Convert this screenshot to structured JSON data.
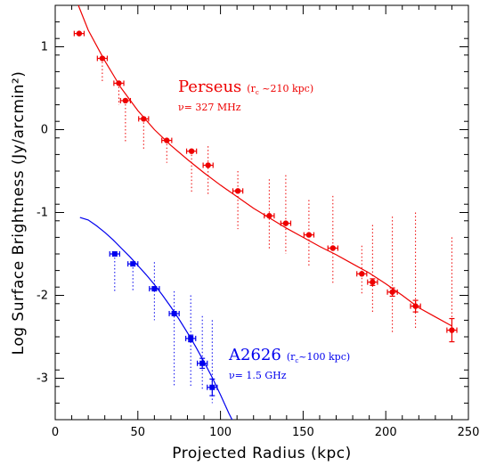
{
  "chart_data": {
    "type": "scatter",
    "title": "",
    "xlabel": "Projected Radius (kpc)",
    "ylabel": "Log Surface Brightness (Jy/arcmin²)",
    "xlim": [
      0,
      250
    ],
    "ylim": [
      -3.5,
      1.5
    ],
    "x_ticks": [
      0,
      50,
      100,
      150,
      200,
      250
    ],
    "x_tick_labels": [
      "0",
      "50",
      "100",
      "150",
      "200",
      "250"
    ],
    "y_ticks": [
      -3,
      -2,
      -1,
      0,
      1
    ],
    "y_tick_labels": [
      "-3",
      "-2",
      "-1",
      "0",
      "1"
    ],
    "grid": false,
    "legend": "none",
    "series": [
      {
        "name": "Perseus",
        "color": "#ee0000",
        "marker": "circle",
        "x": [
          14.5,
          28.5,
          38.5,
          42.5,
          53.5,
          67.5,
          82.5,
          92.5,
          110.5,
          129.5,
          139.5,
          153.5,
          168.0,
          185.5,
          192.0,
          204.0,
          218.0,
          240.0
        ],
        "y": [
          1.16,
          0.86,
          0.56,
          0.35,
          0.13,
          -0.13,
          -0.26,
          -0.43,
          -0.74,
          -1.04,
          -1.13,
          -1.27,
          -1.43,
          -1.74,
          -1.84,
          -1.96,
          -2.13,
          -2.42
        ],
        "xerr": [
          3,
          3,
          3,
          3,
          3,
          3,
          3,
          3,
          3,
          3,
          3,
          3,
          3,
          3,
          3,
          3,
          3,
          3
        ],
        "yerr": [
          0.03,
          0.03,
          0.03,
          0.03,
          0.03,
          0.03,
          0.03,
          0.03,
          0.03,
          0.03,
          0.03,
          0.03,
          0.03,
          0.03,
          0.04,
          0.05,
          0.07,
          0.14
        ],
        "dotted_low": [
          1.16,
          0.56,
          0.3,
          -0.15,
          -0.25,
          -0.4,
          -0.75,
          -0.8,
          -1.2,
          -1.45,
          -1.5,
          -1.65,
          -1.85,
          -2.0,
          -2.2,
          -2.45,
          -2.4,
          -2.42
        ],
        "dotted_high": [
          1.16,
          0.86,
          0.56,
          0.35,
          0.13,
          -0.13,
          -0.26,
          -0.2,
          -0.5,
          -0.6,
          -0.55,
          -0.85,
          -0.8,
          -1.4,
          -1.15,
          -1.05,
          -1.0,
          -1.3
        ],
        "fit_curve": {
          "x": [
            14,
            20,
            30,
            40,
            50,
            60,
            70,
            80,
            90,
            100,
            110,
            120,
            130,
            140,
            150,
            160,
            170,
            180,
            190,
            200,
            210,
            220,
            230,
            240
          ],
          "y": [
            1.5,
            1.2,
            0.83,
            0.5,
            0.23,
            0.0,
            -0.19,
            -0.36,
            -0.52,
            -0.67,
            -0.81,
            -0.95,
            -1.07,
            -1.19,
            -1.3,
            -1.41,
            -1.51,
            -1.62,
            -1.73,
            -1.86,
            -2.0,
            -2.15,
            -2.26,
            -2.37
          ]
        },
        "annotation": {
          "name": "Perseus",
          "core_radius": "(r",
          "core_sub": "c",
          "core_value": " ~210 kpc)",
          "frequency": "ν= 327 MHz"
        }
      },
      {
        "name": "A2626",
        "color": "#0000ee",
        "marker": "square",
        "x": [
          36,
          47,
          60,
          72,
          82,
          89,
          95
        ],
        "y": [
          -1.5,
          -1.62,
          -1.92,
          -2.22,
          -2.52,
          -2.82,
          -3.11
        ],
        "xerr": [
          3,
          3,
          3,
          3,
          3,
          3,
          3
        ],
        "yerr": [
          0.02,
          0.03,
          0.03,
          0.03,
          0.04,
          0.06,
          0.1
        ],
        "dotted_low": [
          -1.95,
          -1.95,
          -2.3,
          -3.1,
          -3.1,
          -3.15,
          -3.3
        ],
        "dotted_high": [
          -1.5,
          -1.62,
          -1.6,
          -1.95,
          -2.0,
          -2.25,
          -2.3
        ],
        "fit_curve": {
          "x": [
            15,
            20,
            25,
            30,
            35,
            40,
            45,
            50,
            55,
            60,
            65,
            70,
            75,
            80,
            85,
            90,
            95,
            100,
            105,
            107
          ],
          "y": [
            -1.06,
            -1.09,
            -1.16,
            -1.24,
            -1.33,
            -1.43,
            -1.53,
            -1.64,
            -1.75,
            -1.87,
            -2.0,
            -2.14,
            -2.29,
            -2.45,
            -2.62,
            -2.8,
            -2.99,
            -3.2,
            -3.42,
            -3.5
          ]
        },
        "annotation": {
          "name": "A2626",
          "core_radius": "(r",
          "core_sub": "c",
          "core_value": "~100 kpc)",
          "frequency": "ν= 1.5 GHz"
        }
      }
    ]
  }
}
